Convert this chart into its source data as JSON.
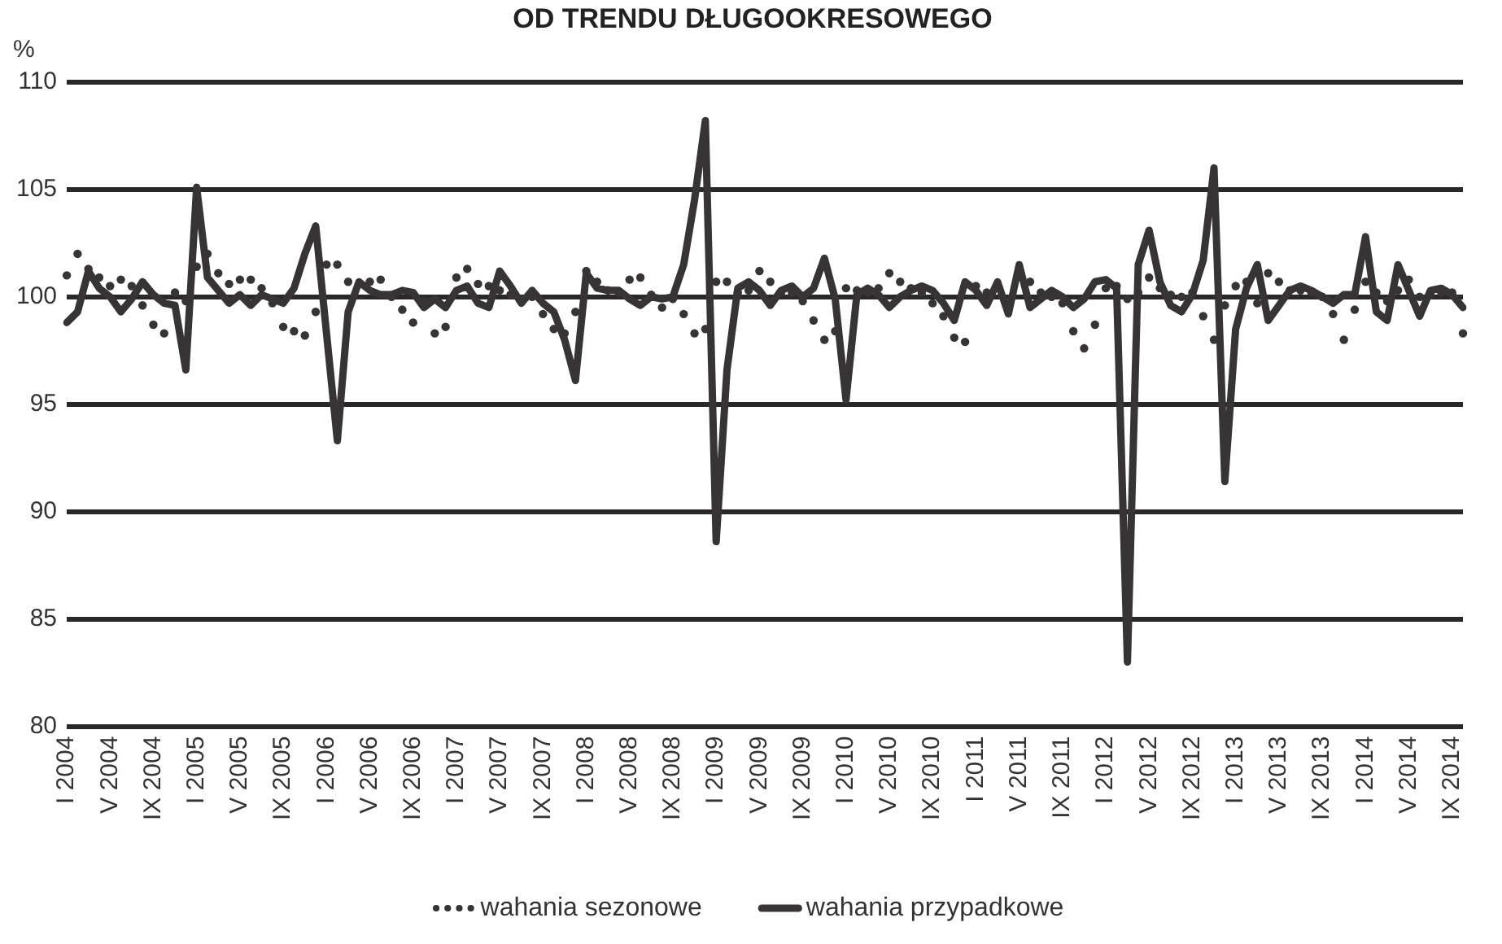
{
  "chart_data": {
    "type": "line",
    "title": "OD TRENDU DŁUGOOKRESOWEGO",
    "ylabel": "%",
    "categories": [
      "I 2004",
      null,
      null,
      null,
      "V 2004",
      null,
      null,
      null,
      "IX 2004",
      null,
      null,
      null,
      "I 2005",
      null,
      null,
      null,
      "V 2005",
      null,
      null,
      null,
      "IX 2005",
      null,
      null,
      null,
      "I 2006",
      null,
      null,
      null,
      "V 2006",
      null,
      null,
      null,
      "IX 2006",
      null,
      null,
      null,
      "I 2007",
      null,
      null,
      null,
      "V 2007",
      null,
      null,
      null,
      "IX 2007",
      null,
      null,
      null,
      "I 2008",
      null,
      null,
      null,
      "V 2008",
      null,
      null,
      null,
      "IX 2008",
      null,
      null,
      null,
      "I 2009",
      null,
      null,
      null,
      "V 2009",
      null,
      null,
      null,
      "IX 2009",
      null,
      null,
      null,
      "I 2010",
      null,
      null,
      null,
      "V 2010",
      null,
      null,
      null,
      "IX 2010",
      null,
      null,
      null,
      "I 2011",
      null,
      null,
      null,
      "V 2011",
      null,
      null,
      null,
      "IX 2011",
      null,
      null,
      null,
      "I 2012",
      null,
      null,
      null,
      "V 2012",
      null,
      null,
      null,
      "IX 2012",
      null,
      null,
      null,
      "I 2013",
      null,
      null,
      null,
      "V 2013",
      null,
      null,
      null,
      "IX 2013",
      null,
      null,
      null,
      "I 2014",
      null,
      null,
      null,
      "V 2014",
      null,
      null,
      null,
      "IX 2014",
      null
    ],
    "series": [
      {
        "name": "wahania sezonowe",
        "type": "scatter",
        "marker": "circle",
        "color": "#363435",
        "values": [
          101,
          102,
          101.3,
          100.9,
          100.5,
          100.8,
          100.5,
          99.6,
          98.7,
          98.3,
          100.2,
          99.8,
          101.4,
          102,
          101.1,
          100.6,
          100.8,
          100.8,
          100.4,
          99.7,
          98.6,
          98.4,
          98.2,
          99.3,
          101.5,
          101.5,
          100.7,
          null,
          100.7,
          100.8,
          100,
          99.4,
          98.8,
          99.8,
          98.3,
          98.6,
          100.9,
          101.3,
          100.6,
          100.5,
          100.3,
          100.1,
          null,
          100,
          99.2,
          98.5,
          98.3,
          99.3,
          101.2,
          100.7,
          100.3,
          100.2,
          100.8,
          100.9,
          100.1,
          99.5,
          99.9,
          99.2,
          98.3,
          98.5,
          100.7,
          100.7,
          100.2,
          100.3,
          101.2,
          100.7,
          100.2,
          100.2,
          99.8,
          98.9,
          98,
          98.4,
          100.4,
          100.3,
          100.2,
          100.4,
          101.1,
          100.7,
          100.4,
          100.2,
          99.7,
          99.1,
          98.1,
          97.9,
          100.5,
          100.2,
          null,
          null,
          null,
          100.7,
          100.2,
          100,
          99.7,
          98.4,
          97.6,
          98.7,
          100.4,
          100.5,
          99.9,
          100.2,
          100.9,
          100.4,
          100.1,
          100,
          100.2,
          99.1,
          98,
          99.6,
          100.5,
          100.7,
          99.7,
          101.1,
          100.7,
          100.3,
          100.3,
          100.2,
          100,
          99.2,
          98,
          99.4,
          100.7,
          100.2,
          99.8,
          100.3,
          100.8,
          100,
          100.1,
          100.2,
          100.2,
          98.3
        ]
      },
      {
        "name": "wahania przypadkowe",
        "type": "line",
        "marker": "none",
        "line_style": "solid",
        "color": "#363435",
        "values": [
          98.8,
          99.3,
          101.2,
          100.4,
          100,
          99.3,
          99.9,
          100.7,
          100.1,
          99.7,
          99.6,
          96.6,
          105.1,
          100.9,
          100.3,
          99.7,
          100.1,
          99.6,
          100.1,
          99.9,
          99.7,
          100.4,
          102,
          103.3,
          98.3,
          93.3,
          99.3,
          100.7,
          100.3,
          100.1,
          100.1,
          100.3,
          100.2,
          99.5,
          99.9,
          99.5,
          100.3,
          100.5,
          99.7,
          99.5,
          101.2,
          100.5,
          99.7,
          100.3,
          99.7,
          99.3,
          98,
          96.1,
          101.1,
          100.4,
          100.3,
          100.3,
          99.9,
          99.6,
          100,
          99.9,
          100,
          101.5,
          104.5,
          108.2,
          88.6,
          96.6,
          100.4,
          100.7,
          100.3,
          99.6,
          100.3,
          100.5,
          100,
          100.4,
          101.8,
          99.9,
          95.2,
          100.1,
          100.4,
          100.1,
          99.5,
          100,
          100.3,
          100.5,
          100.3,
          99.7,
          98.9,
          100.7,
          100.3,
          99.6,
          100.7,
          99.2,
          101.5,
          99.5,
          99.9,
          100.3,
          100,
          99.5,
          99.9,
          100.7,
          100.8,
          100.4,
          83,
          101.5,
          103.1,
          100.7,
          99.6,
          99.3,
          100.1,
          101.7,
          106,
          91.4,
          98.5,
          100.4,
          101.5,
          98.9,
          99.6,
          100.3,
          100.5,
          100.3,
          100,
          99.7,
          100.1,
          100.1,
          102.8,
          99.3,
          98.9,
          101.5,
          100.3,
          99.1,
          100.3,
          100.4,
          100.1,
          99.5
        ]
      }
    ],
    "ylim": [
      80,
      110
    ],
    "yticks": [
      80,
      85,
      90,
      95,
      100,
      105,
      110
    ],
    "grid": "y",
    "legend": "bottom"
  }
}
